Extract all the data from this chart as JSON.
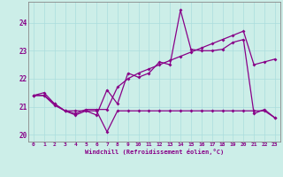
{
  "xlabel": "Windchill (Refroidissement éolien,°C)",
  "bg_color": "#cceee8",
  "line_color": "#880088",
  "ylim": [
    19.75,
    24.75
  ],
  "xlim": [
    -0.5,
    23.5
  ],
  "yticks": [
    20,
    21,
    22,
    23,
    24
  ],
  "xticks": [
    0,
    1,
    2,
    3,
    4,
    5,
    6,
    7,
    8,
    9,
    10,
    11,
    12,
    13,
    14,
    15,
    16,
    17,
    18,
    19,
    20,
    21,
    22,
    23
  ],
  "series1_x": [
    0,
    1,
    2,
    3,
    4,
    5,
    6,
    7,
    8,
    9,
    10,
    11,
    12,
    13,
    14,
    15,
    16,
    17,
    18,
    19,
    20,
    21,
    22,
    23
  ],
  "series1_y": [
    21.4,
    21.5,
    21.1,
    20.85,
    20.85,
    20.85,
    20.85,
    20.1,
    20.85,
    20.85,
    20.85,
    20.85,
    20.85,
    20.85,
    20.85,
    20.85,
    20.85,
    20.85,
    20.85,
    20.85,
    20.85,
    20.85,
    20.85,
    20.6
  ],
  "series2_x": [
    0,
    1,
    2,
    3,
    4,
    5,
    6,
    7,
    8,
    9,
    10,
    11,
    12,
    13,
    14,
    15,
    16,
    17,
    18,
    19,
    20,
    21,
    22,
    23
  ],
  "series2_y": [
    21.4,
    21.4,
    21.05,
    20.85,
    20.7,
    20.85,
    20.7,
    21.6,
    21.1,
    22.2,
    22.05,
    22.2,
    22.6,
    22.5,
    24.45,
    23.05,
    23.0,
    23.0,
    23.05,
    23.3,
    23.4,
    20.75,
    20.9,
    20.6
  ],
  "series3_x": [
    0,
    1,
    2,
    3,
    4,
    5,
    6,
    7,
    8,
    9,
    10,
    11,
    12,
    13,
    14,
    15,
    16,
    17,
    18,
    19,
    20,
    21,
    22,
    23
  ],
  "series3_y": [
    21.4,
    21.4,
    21.1,
    20.85,
    20.75,
    20.9,
    20.9,
    20.9,
    21.7,
    22.0,
    22.2,
    22.35,
    22.5,
    22.65,
    22.8,
    22.95,
    23.1,
    23.25,
    23.4,
    23.55,
    23.7,
    22.5,
    22.6,
    22.7
  ],
  "grid_color": "#aadddd",
  "spine_color": "#888888",
  "marker": "D",
  "markersize": 2.0,
  "linewidth": 0.9
}
